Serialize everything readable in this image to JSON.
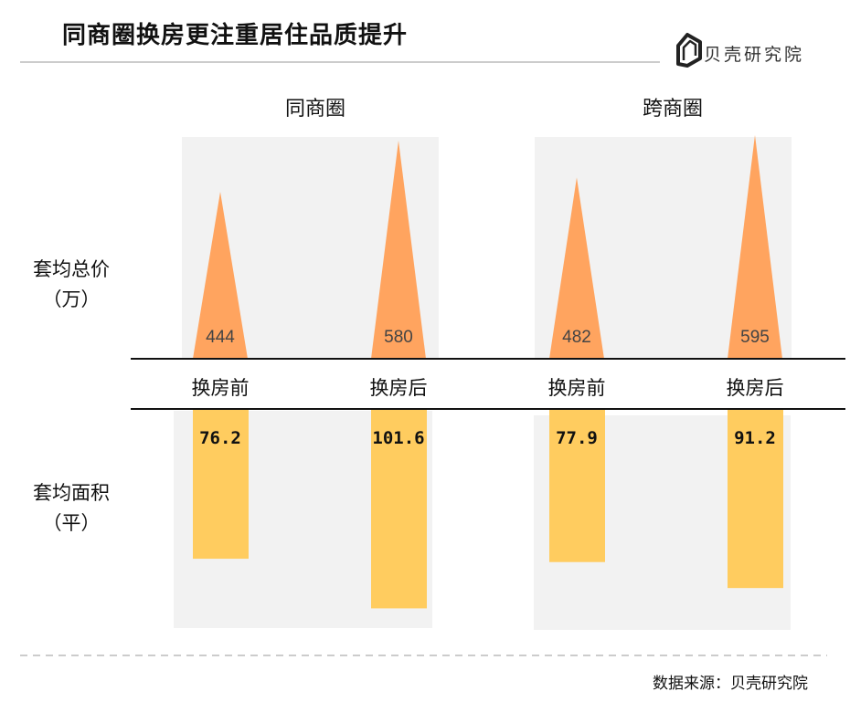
{
  "title": "同商圈换房更注重居住品质提升",
  "logo": {
    "text": "贝壳研究院",
    "icon": "beike-logo-icon"
  },
  "source": "数据来源：贝壳研究院",
  "colors": {
    "price": "#FFA45F",
    "area": "#FFCC5F",
    "panel": "#F2F2F2"
  },
  "chart_data": {
    "type": "bar",
    "title": "同商圈换房更注重居住品质提升",
    "groups": [
      "同商圈",
      "跨商圈"
    ],
    "categories": [
      "换房前",
      "换房后"
    ],
    "metrics": [
      {
        "name": "套均总价",
        "unit": "（万）",
        "mark": "triangle",
        "values": [
          [
            444,
            580
          ],
          [
            482,
            595
          ]
        ],
        "labels": [
          [
            "444",
            "580"
          ],
          [
            "482",
            "595"
          ]
        ]
      },
      {
        "name": "套均面积",
        "unit": "（平）",
        "mark": "bar",
        "values": [
          [
            76.2,
            101.6
          ],
          [
            77.9,
            91.2
          ]
        ],
        "labels": [
          [
            "76.2",
            "101.6"
          ],
          [
            "77.9",
            "91.2"
          ]
        ]
      }
    ]
  }
}
